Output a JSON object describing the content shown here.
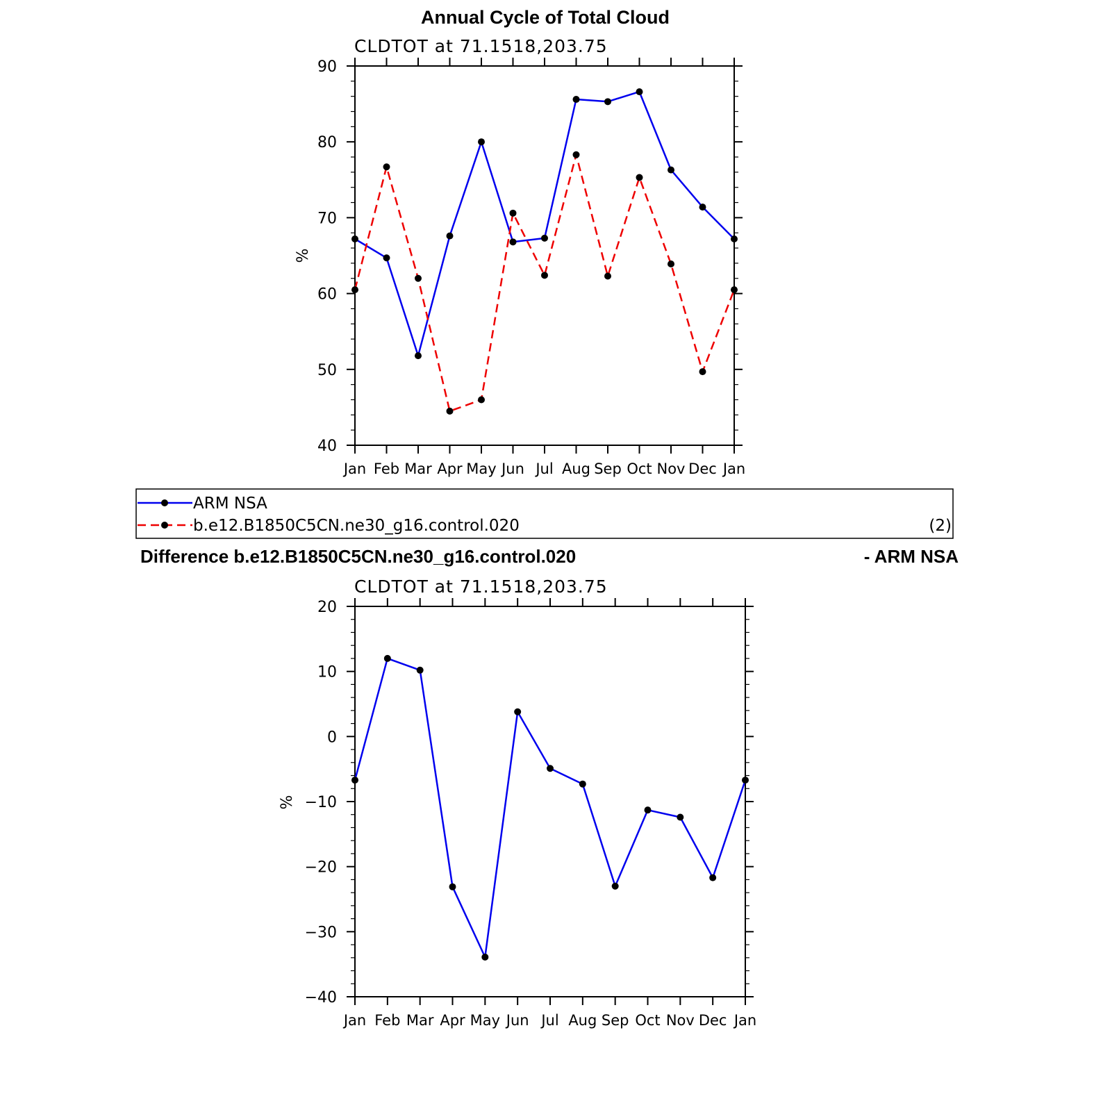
{
  "figure_title": "Annual Cycle of Total Cloud",
  "panel_label": "(2)",
  "legend": [
    {
      "label": "ARM NSA",
      "color": "#0000ee",
      "dash": false
    },
    {
      "label": "b.e12.B1850C5CN.ne30_g16.control.020",
      "color": "#ee0000",
      "dash": true
    }
  ],
  "diff_title": {
    "left": "Difference b.e12.B1850C5CN.ne30_g16.control.020",
    "right": "- ARM NSA"
  },
  "chart_data": [
    {
      "type": "line",
      "subtitle": "CLDTOT  at  71.1518,203.75",
      "ylabel": "%",
      "ylim": [
        40,
        90
      ],
      "yticks": [
        40,
        50,
        60,
        70,
        80,
        90
      ],
      "categories": [
        "Jan",
        "Feb",
        "Mar",
        "Apr",
        "May",
        "Jun",
        "Jul",
        "Aug",
        "Sep",
        "Oct",
        "Nov",
        "Dec",
        "Jan"
      ],
      "grid": false,
      "series": [
        {
          "name": "ARM NSA",
          "color": "#0000ee",
          "dash": false,
          "values": [
            67.2,
            64.7,
            51.8,
            67.6,
            80.0,
            66.8,
            67.3,
            85.6,
            85.3,
            86.6,
            76.3,
            71.4,
            67.2
          ]
        },
        {
          "name": "b.e12.B1850C5CN.ne30_g16.control.020",
          "color": "#ee0000",
          "dash": true,
          "values": [
            60.5,
            76.7,
            62.0,
            44.5,
            46.0,
            70.6,
            62.4,
            78.3,
            62.3,
            75.3,
            63.9,
            49.7,
            60.5
          ]
        }
      ]
    },
    {
      "type": "line",
      "subtitle": "CLDTOT  at  71.1518,203.75",
      "ylabel": "%",
      "ylim": [
        -40,
        20
      ],
      "yticks": [
        -40,
        -30,
        -20,
        -10,
        0,
        10,
        20
      ],
      "categories": [
        "Jan",
        "Feb",
        "Mar",
        "Apr",
        "May",
        "Jun",
        "Jul",
        "Aug",
        "Sep",
        "Oct",
        "Nov",
        "Dec",
        "Jan"
      ],
      "grid": false,
      "series": [
        {
          "color": "#0000ee",
          "dash": false,
          "values": [
            -6.7,
            12.0,
            10.2,
            -23.1,
            -33.9,
            3.8,
            -4.9,
            -7.3,
            -23.0,
            -11.3,
            -12.4,
            -21.7,
            -6.7
          ]
        }
      ]
    }
  ]
}
